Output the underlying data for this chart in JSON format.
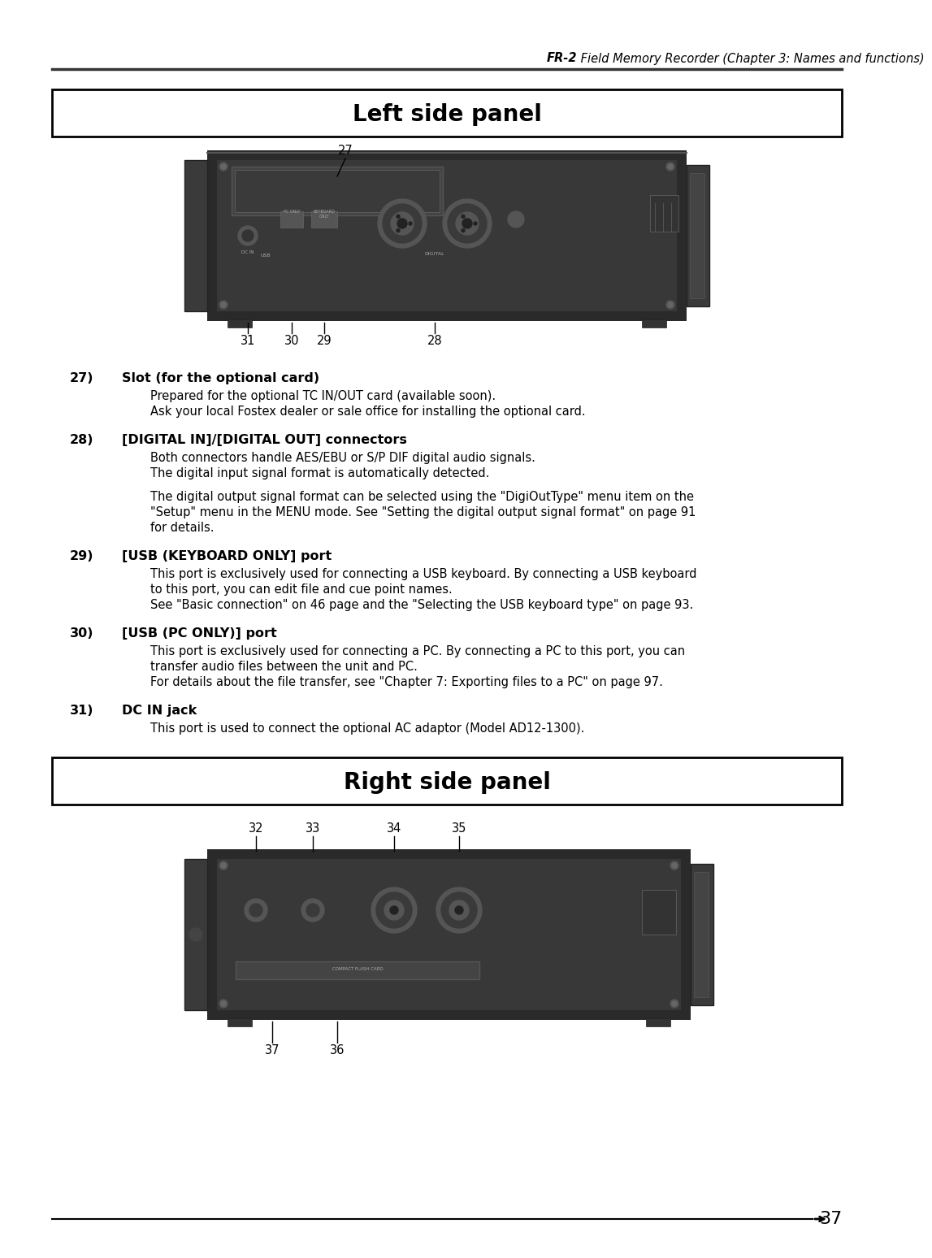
{
  "page_header": " Field Memory Recorder (Chapter 3: Names and functions)",
  "page_header_bold": "FR-2",
  "page_number": "37",
  "left_panel_title": "Left side panel",
  "right_panel_title": "Right side panel",
  "items_left": [
    {
      "num": "27)",
      "bold": "Slot (for the optional card)",
      "lines": [
        {
          "text": "Prepared for the optional TC IN/OUT card (available soon).",
          "indent": true
        },
        {
          "text": "Ask your local Fostex dealer or sale office for installing the optional card.",
          "indent": true
        }
      ]
    },
    {
      "num": "28)",
      "bold": "[DIGITAL IN]/[DIGITAL OUT] connectors",
      "lines": [
        {
          "text": "Both connectors handle AES/EBU or S/P DIF digital audio signals.",
          "indent": true
        },
        {
          "text": "The digital input signal format is automatically detected.",
          "indent": true
        },
        {
          "text": "",
          "indent": false
        },
        {
          "text": "The digital output signal format can be selected using the \"DigiOutType\" menu item on the",
          "indent": true
        },
        {
          "text": "\"Setup\" menu in the MENU mode. See \"Setting the digital output signal format\" on page 91",
          "indent": true
        },
        {
          "text": "for details.",
          "indent": true
        }
      ]
    },
    {
      "num": "29)",
      "bold": "[USB (KEYBOARD ONLY] port",
      "lines": [
        {
          "text": "This port is exclusively used for connecting a USB keyboard. By connecting a USB keyboard",
          "indent": true
        },
        {
          "text": "to this port, you can edit file and cue point names.",
          "indent": true
        },
        {
          "text": "See \"Basic connection\" on 46 page and the \"Selecting the USB keyboard type\" on page 93.",
          "indent": true
        }
      ]
    },
    {
      "num": "30)",
      "bold": "[USB (PC ONLY)] port",
      "lines": [
        {
          "text": "This port is exclusively used for connecting a PC. By connecting a PC to this port, you can",
          "indent": true
        },
        {
          "text": "transfer audio files between the unit and PC.",
          "indent": true
        },
        {
          "text": "For details about the file transfer, see \"Chapter 7: Exporting files to a PC\" on page 97.",
          "indent": true
        }
      ]
    },
    {
      "num": "31)",
      "bold": "DC IN jack",
      "lines": [
        {
          "text": "This port is used to connect the optional AC adaptor (Model AD12-1300).",
          "indent": true
        }
      ]
    }
  ],
  "bg_color": "#ffffff",
  "text_color": "#000000"
}
